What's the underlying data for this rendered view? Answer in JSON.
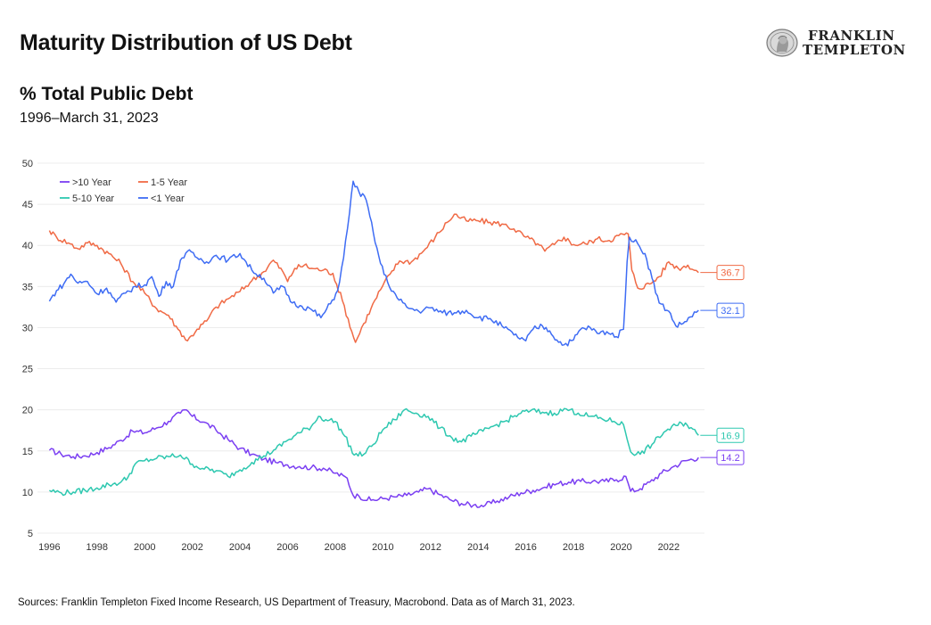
{
  "header": {
    "title": "Maturity Distribution of US Debt",
    "subtitle": "% Total Public Debt",
    "date_range": "1996–March 31, 2023"
  },
  "logo": {
    "line1": "FRANKLIN",
    "line2": "TEMPLETON",
    "icon": "franklin-seal-icon"
  },
  "footer": {
    "sources": "Sources: Franklin Templeton Fixed Income Research, US Department of Treasury, Macrobond. Data as of March 31, 2023."
  },
  "chart_data": {
    "type": "line",
    "xlim": [
      1995.5,
      2023.5
    ],
    "ylim": [
      5,
      50
    ],
    "x_ticks": [
      1996,
      1998,
      2000,
      2002,
      2004,
      2006,
      2008,
      2010,
      2012,
      2014,
      2016,
      2018,
      2020,
      2022
    ],
    "y_ticks": [
      5,
      10,
      15,
      20,
      25,
      30,
      35,
      40,
      45,
      50
    ],
    "grid": true,
    "legend_position": "top-left",
    "series": [
      {
        "name": ">10 Year",
        "color": "#7b3ff2",
        "end_label": "14.2",
        "points": [
          [
            1996.0,
            15.1
          ],
          [
            1996.5,
            14.6
          ],
          [
            1997.0,
            14.3
          ],
          [
            1997.5,
            14.4
          ],
          [
            1998.0,
            14.8
          ],
          [
            1998.5,
            15.4
          ],
          [
            1999.0,
            16.3
          ],
          [
            1999.5,
            17.4
          ],
          [
            2000.0,
            17.2
          ],
          [
            2000.5,
            17.8
          ],
          [
            2001.0,
            18.6
          ],
          [
            2001.5,
            19.6
          ],
          [
            2001.75,
            20.0
          ],
          [
            2002.0,
            19.2
          ],
          [
            2002.5,
            18.5
          ],
          [
            2003.0,
            17.5
          ],
          [
            2003.5,
            16.4
          ],
          [
            2004.0,
            15.3
          ],
          [
            2004.5,
            14.6
          ],
          [
            2005.0,
            14.0
          ],
          [
            2005.5,
            13.6
          ],
          [
            2006.0,
            13.3
          ],
          [
            2006.5,
            13.1
          ],
          [
            2007.0,
            13.0
          ],
          [
            2007.5,
            12.9
          ],
          [
            2008.0,
            12.3
          ],
          [
            2008.5,
            11.7
          ],
          [
            2008.75,
            9.6
          ],
          [
            2009.0,
            9.5
          ],
          [
            2009.5,
            9.0
          ],
          [
            2010.0,
            9.2
          ],
          [
            2010.5,
            9.4
          ],
          [
            2011.0,
            9.6
          ],
          [
            2011.5,
            10.0
          ],
          [
            2011.9,
            10.4
          ],
          [
            2012.3,
            9.8
          ],
          [
            2012.8,
            9.1
          ],
          [
            2013.3,
            8.6
          ],
          [
            2013.8,
            8.4
          ],
          [
            2014.3,
            8.4
          ],
          [
            2014.8,
            8.9
          ],
          [
            2015.3,
            9.4
          ],
          [
            2015.8,
            9.9
          ],
          [
            2016.3,
            10.2
          ],
          [
            2016.8,
            10.6
          ],
          [
            2017.3,
            11.0
          ],
          [
            2017.8,
            11.2
          ],
          [
            2018.3,
            11.3
          ],
          [
            2018.8,
            11.3
          ],
          [
            2019.3,
            11.3
          ],
          [
            2019.8,
            11.5
          ],
          [
            2020.2,
            11.9
          ],
          [
            2020.4,
            10.1
          ],
          [
            2020.8,
            10.4
          ],
          [
            2021.2,
            11.2
          ],
          [
            2021.7,
            12.3
          ],
          [
            2022.2,
            13.1
          ],
          [
            2022.7,
            13.8
          ],
          [
            2023.25,
            14.2
          ]
        ]
      },
      {
        "name": "1-5 Year",
        "color": "#f06a45",
        "end_label": "36.7",
        "points": [
          [
            1996.0,
            41.8
          ],
          [
            1996.3,
            41.0
          ],
          [
            1996.8,
            40.3
          ],
          [
            1997.2,
            39.6
          ],
          [
            1997.6,
            40.3
          ],
          [
            1998.0,
            40.0
          ],
          [
            1998.5,
            39.0
          ],
          [
            1999.0,
            37.8
          ],
          [
            1999.5,
            35.6
          ],
          [
            2000.0,
            34.2
          ],
          [
            2000.5,
            32.3
          ],
          [
            2001.0,
            31.5
          ],
          [
            2001.4,
            29.8
          ],
          [
            2001.8,
            28.4
          ],
          [
            2002.2,
            29.8
          ],
          [
            2002.6,
            30.8
          ],
          [
            2003.0,
            32.5
          ],
          [
            2003.5,
            33.5
          ],
          [
            2004.0,
            34.4
          ],
          [
            2004.5,
            35.7
          ],
          [
            2005.0,
            36.8
          ],
          [
            2005.4,
            38.2
          ],
          [
            2005.8,
            36.8
          ],
          [
            2006.0,
            35.6
          ],
          [
            2006.3,
            37.2
          ],
          [
            2006.7,
            37.6
          ],
          [
            2007.0,
            37.2
          ],
          [
            2007.5,
            37.0
          ],
          [
            2007.9,
            36.6
          ],
          [
            2008.3,
            33.3
          ],
          [
            2008.7,
            29.5
          ],
          [
            2008.85,
            28.2
          ],
          [
            2009.2,
            30.5
          ],
          [
            2009.5,
            32.3
          ],
          [
            2009.9,
            34.6
          ],
          [
            2010.3,
            36.5
          ],
          [
            2010.7,
            38.1
          ],
          [
            2011.2,
            38.0
          ],
          [
            2011.7,
            39.3
          ],
          [
            2012.2,
            41.0
          ],
          [
            2012.7,
            42.8
          ],
          [
            2013.0,
            43.8
          ],
          [
            2013.5,
            43.0
          ],
          [
            2014.0,
            43.0
          ],
          [
            2014.5,
            42.8
          ],
          [
            2015.0,
            42.6
          ],
          [
            2015.5,
            42.0
          ],
          [
            2016.0,
            41.0
          ],
          [
            2016.5,
            40.2
          ],
          [
            2016.8,
            39.3
          ],
          [
            2017.2,
            40.1
          ],
          [
            2017.6,
            41.0
          ],
          [
            2018.0,
            40.1
          ],
          [
            2018.5,
            40.2
          ],
          [
            2019.0,
            40.8
          ],
          [
            2019.5,
            40.6
          ],
          [
            2019.9,
            41.2
          ],
          [
            2020.3,
            41.4
          ],
          [
            2020.45,
            37.0
          ],
          [
            2020.7,
            34.8
          ],
          [
            2021.2,
            35.3
          ],
          [
            2021.6,
            36.2
          ],
          [
            2022.0,
            38.0
          ],
          [
            2022.4,
            37.2
          ],
          [
            2022.8,
            37.6
          ],
          [
            2023.25,
            36.7
          ]
        ]
      },
      {
        "name": "5-10 Year",
        "color": "#2ec8b0",
        "end_label": "16.9",
        "points": [
          [
            1996.0,
            10.2
          ],
          [
            1996.5,
            9.9
          ],
          [
            1997.0,
            10.0
          ],
          [
            1997.5,
            10.2
          ],
          [
            1998.0,
            10.5
          ],
          [
            1998.5,
            10.9
          ],
          [
            1999.0,
            11.2
          ],
          [
            1999.3,
            11.8
          ],
          [
            1999.6,
            13.4
          ],
          [
            2000.0,
            13.8
          ],
          [
            2000.5,
            14.1
          ],
          [
            2001.0,
            14.3
          ],
          [
            2001.5,
            14.5
          ],
          [
            2002.0,
            13.4
          ],
          [
            2002.5,
            12.8
          ],
          [
            2003.0,
            12.6
          ],
          [
            2003.5,
            11.9
          ],
          [
            2004.0,
            12.7
          ],
          [
            2004.5,
            13.6
          ],
          [
            2005.0,
            14.4
          ],
          [
            2005.5,
            15.2
          ],
          [
            2006.0,
            16.3
          ],
          [
            2006.5,
            17.2
          ],
          [
            2007.0,
            18.0
          ],
          [
            2007.3,
            19.2
          ],
          [
            2007.6,
            18.8
          ],
          [
            2008.0,
            18.6
          ],
          [
            2008.4,
            16.8
          ],
          [
            2008.8,
            14.5
          ],
          [
            2009.2,
            14.6
          ],
          [
            2009.6,
            15.8
          ],
          [
            2010.0,
            17.6
          ],
          [
            2010.5,
            18.8
          ],
          [
            2010.9,
            20.0
          ],
          [
            2011.4,
            19.6
          ],
          [
            2011.9,
            19.2
          ],
          [
            2012.4,
            17.8
          ],
          [
            2012.9,
            16.6
          ],
          [
            2013.3,
            16.1
          ],
          [
            2013.7,
            16.8
          ],
          [
            2014.2,
            17.4
          ],
          [
            2014.7,
            18.1
          ],
          [
            2015.2,
            18.7
          ],
          [
            2015.7,
            19.5
          ],
          [
            2016.2,
            19.9
          ],
          [
            2016.7,
            19.7
          ],
          [
            2017.2,
            19.6
          ],
          [
            2017.7,
            20.1
          ],
          [
            2018.2,
            19.6
          ],
          [
            2018.7,
            19.2
          ],
          [
            2019.2,
            18.9
          ],
          [
            2019.7,
            18.6
          ],
          [
            2020.1,
            18.2
          ],
          [
            2020.4,
            14.9
          ],
          [
            2020.8,
            14.6
          ],
          [
            2021.3,
            15.8
          ],
          [
            2021.8,
            17.3
          ],
          [
            2022.3,
            18.1
          ],
          [
            2022.7,
            18.4
          ],
          [
            2023.25,
            16.9
          ]
        ]
      },
      {
        "name": "<1 Year",
        "color": "#3e6cf4",
        "end_label": "32.1",
        "points": [
          [
            1996.0,
            33.2
          ],
          [
            1996.3,
            34.5
          ],
          [
            1996.6,
            35.3
          ],
          [
            1996.9,
            36.5
          ],
          [
            1997.2,
            35.4
          ],
          [
            1997.6,
            35.6
          ],
          [
            1998.0,
            34.1
          ],
          [
            1998.4,
            34.8
          ],
          [
            1998.8,
            33.1
          ],
          [
            1999.2,
            34.2
          ],
          [
            1999.6,
            35.0
          ],
          [
            2000.0,
            35.2
          ],
          [
            2000.3,
            36.2
          ],
          [
            2000.6,
            33.8
          ],
          [
            2000.9,
            35.6
          ],
          [
            2001.2,
            35.0
          ],
          [
            2001.5,
            38.2
          ],
          [
            2001.8,
            39.3
          ],
          [
            2002.2,
            38.5
          ],
          [
            2002.6,
            38.0
          ],
          [
            2003.0,
            38.8
          ],
          [
            2003.5,
            38.2
          ],
          [
            2004.0,
            39.0
          ],
          [
            2004.5,
            37.0
          ],
          [
            2005.0,
            36.0
          ],
          [
            2005.4,
            34.2
          ],
          [
            2005.8,
            35.0
          ],
          [
            2006.2,
            33.0
          ],
          [
            2006.6,
            32.6
          ],
          [
            2007.0,
            32.2
          ],
          [
            2007.4,
            31.2
          ],
          [
            2007.8,
            32.9
          ],
          [
            2008.1,
            34.5
          ],
          [
            2008.35,
            38.5
          ],
          [
            2008.6,
            44.0
          ],
          [
            2008.75,
            47.8
          ],
          [
            2009.0,
            46.5
          ],
          [
            2009.3,
            45.5
          ],
          [
            2009.6,
            41.5
          ],
          [
            2009.9,
            37.8
          ],
          [
            2010.2,
            35.5
          ],
          [
            2010.6,
            33.6
          ],
          [
            2011.0,
            32.5
          ],
          [
            2011.5,
            32.0
          ],
          [
            2012.0,
            32.4
          ],
          [
            2012.5,
            31.8
          ],
          [
            2013.0,
            31.8
          ],
          [
            2013.5,
            32.1
          ],
          [
            2014.0,
            31.2
          ],
          [
            2014.5,
            31.1
          ],
          [
            2015.0,
            30.2
          ],
          [
            2015.5,
            29.1
          ],
          [
            2016.0,
            28.4
          ],
          [
            2016.3,
            29.8
          ],
          [
            2016.7,
            30.2
          ],
          [
            2017.0,
            29.6
          ],
          [
            2017.3,
            28.5
          ],
          [
            2017.6,
            27.9
          ],
          [
            2018.0,
            28.5
          ],
          [
            2018.3,
            29.8
          ],
          [
            2018.7,
            30.0
          ],
          [
            2019.0,
            29.3
          ],
          [
            2019.4,
            29.5
          ],
          [
            2019.8,
            28.9
          ],
          [
            2020.1,
            29.8
          ],
          [
            2020.25,
            38.0
          ],
          [
            2020.35,
            41.0
          ],
          [
            2020.7,
            40.2
          ],
          [
            2021.0,
            39.0
          ],
          [
            2021.3,
            36.0
          ],
          [
            2021.6,
            33.0
          ],
          [
            2022.0,
            32.0
          ],
          [
            2022.3,
            30.2
          ],
          [
            2022.6,
            30.5
          ],
          [
            2022.9,
            31.3
          ],
          [
            2023.25,
            32.1
          ]
        ]
      }
    ]
  }
}
